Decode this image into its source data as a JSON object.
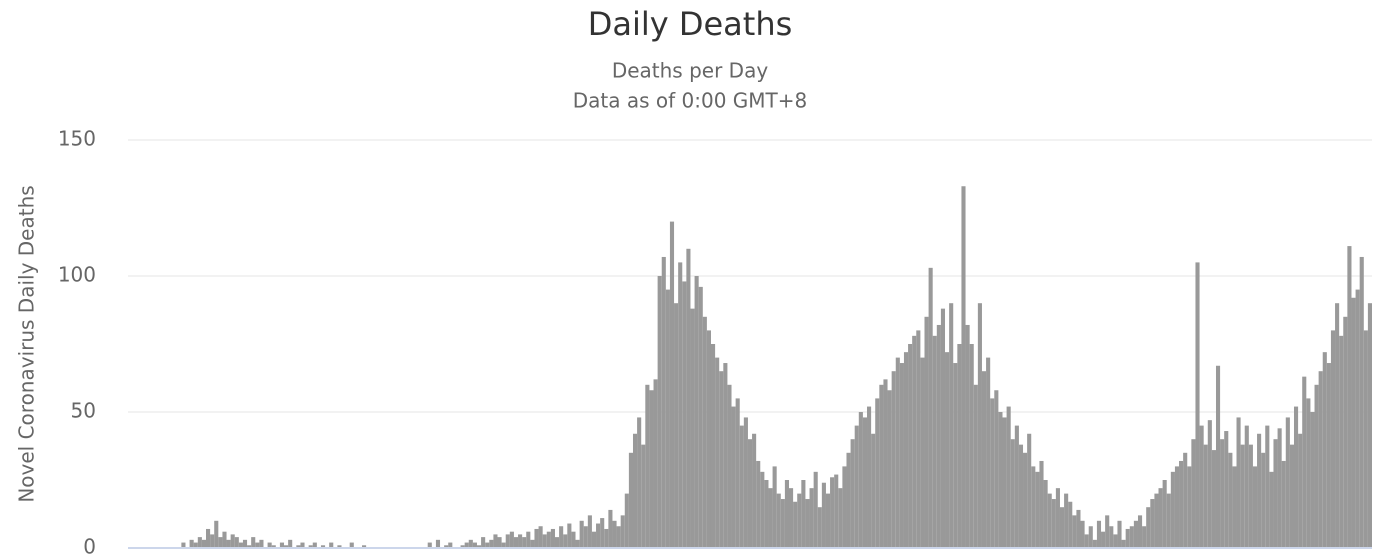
{
  "chart_data": {
    "type": "bar",
    "title": "Daily Deaths",
    "subtitle": [
      "Deaths per Day",
      "Data as of 0:00 GMT+8"
    ],
    "y_label": "Novel Coronavirus Daily Deaths",
    "color": "#999999",
    "ylim": [
      0,
      150
    ],
    "yticks": [
      0,
      50,
      100,
      150
    ],
    "grid": true,
    "values": [
      0,
      0,
      0,
      0,
      0,
      0,
      0,
      0,
      0,
      0,
      0,
      0,
      0,
      2,
      0,
      3,
      2,
      4,
      3,
      7,
      5,
      10,
      4,
      6,
      3,
      5,
      4,
      2,
      3,
      1,
      4,
      2,
      3,
      0,
      2,
      1,
      0,
      2,
      1,
      3,
      0,
      1,
      2,
      0,
      1,
      2,
      0,
      1,
      0,
      2,
      0,
      1,
      0,
      0,
      2,
      0,
      0,
      1,
      0,
      0,
      0,
      0,
      0,
      0,
      0,
      0,
      0,
      0,
      0,
      0,
      0,
      0,
      0,
      2,
      0,
      3,
      0,
      1,
      2,
      0,
      0,
      1,
      2,
      3,
      2,
      1,
      4,
      2,
      3,
      5,
      4,
      2,
      5,
      6,
      4,
      5,
      4,
      6,
      3,
      7,
      8,
      5,
      6,
      7,
      4,
      8,
      5,
      9,
      6,
      3,
      10,
      8,
      12,
      6,
      9,
      11,
      7,
      14,
      10,
      8,
      12,
      20,
      35,
      42,
      48,
      38,
      60,
      58,
      62,
      100,
      107,
      95,
      120,
      90,
      105,
      98,
      110,
      88,
      100,
      96,
      85,
      80,
      75,
      70,
      65,
      68,
      60,
      52,
      55,
      45,
      48,
      40,
      42,
      32,
      28,
      25,
      22,
      30,
      20,
      18,
      25,
      22,
      17,
      20,
      25,
      18,
      22,
      28,
      15,
      24,
      20,
      26,
      27,
      22,
      30,
      35,
      40,
      45,
      50,
      48,
      52,
      42,
      55,
      60,
      62,
      58,
      65,
      70,
      68,
      72,
      75,
      78,
      80,
      70,
      85,
      103,
      78,
      82,
      88,
      72,
      90,
      68,
      75,
      133,
      82,
      75,
      60,
      90,
      65,
      70,
      55,
      58,
      50,
      48,
      52,
      40,
      45,
      38,
      35,
      42,
      30,
      28,
      32,
      25,
      20,
      18,
      22,
      15,
      20,
      17,
      12,
      14,
      10,
      5,
      8,
      3,
      10,
      6,
      12,
      8,
      5,
      10,
      3,
      7,
      8,
      10,
      12,
      8,
      15,
      18,
      20,
      22,
      25,
      20,
      28,
      30,
      32,
      35,
      30,
      40,
      105,
      45,
      38,
      47,
      36,
      67,
      40,
      43,
      35,
      30,
      48,
      38,
      45,
      38,
      30,
      42,
      35,
      45,
      28,
      40,
      44,
      32,
      48,
      38,
      52,
      42,
      63,
      55,
      50,
      60,
      65,
      72,
      68,
      80,
      90,
      78,
      85,
      111,
      92,
      95,
      107,
      80,
      90
    ]
  }
}
